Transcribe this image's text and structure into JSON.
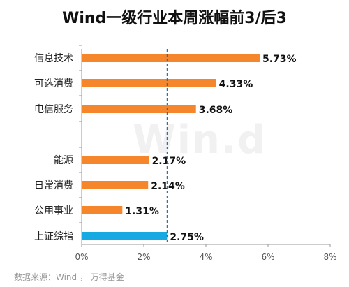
{
  "title": "Wind一级行业本周涨幅前3/后3",
  "source": "数据来源：Wind ， 万得基金",
  "watermark": "Win.d",
  "colors": {
    "bar": "#F5862B",
    "highlight": "#17A9E1",
    "axis": "#999999",
    "refline": "#2E6DA4"
  },
  "chart_data": {
    "type": "bar",
    "orientation": "horizontal",
    "title": "Wind一级行业本周涨幅前3/后3",
    "categories": [
      "信息技术",
      "可选消费",
      "电信服务",
      "能源",
      "日常消费",
      "公用事业",
      "上证综指"
    ],
    "values": [
      5.73,
      4.33,
      3.68,
      2.17,
      2.14,
      1.31,
      2.75
    ],
    "value_labels": [
      "5.73%",
      "4.33%",
      "3.68%",
      "2.17%",
      "2.14%",
      "1.31%",
      "2.75%"
    ],
    "highlight": [
      "上证综指"
    ],
    "xlim": [
      0,
      8
    ],
    "xticks": [
      0,
      2,
      4,
      6,
      8
    ],
    "xtick_labels": [
      "0%",
      "2%",
      "4%",
      "6%",
      "8%"
    ],
    "reference_line": 2.75,
    "grid": false,
    "legend": "none"
  }
}
